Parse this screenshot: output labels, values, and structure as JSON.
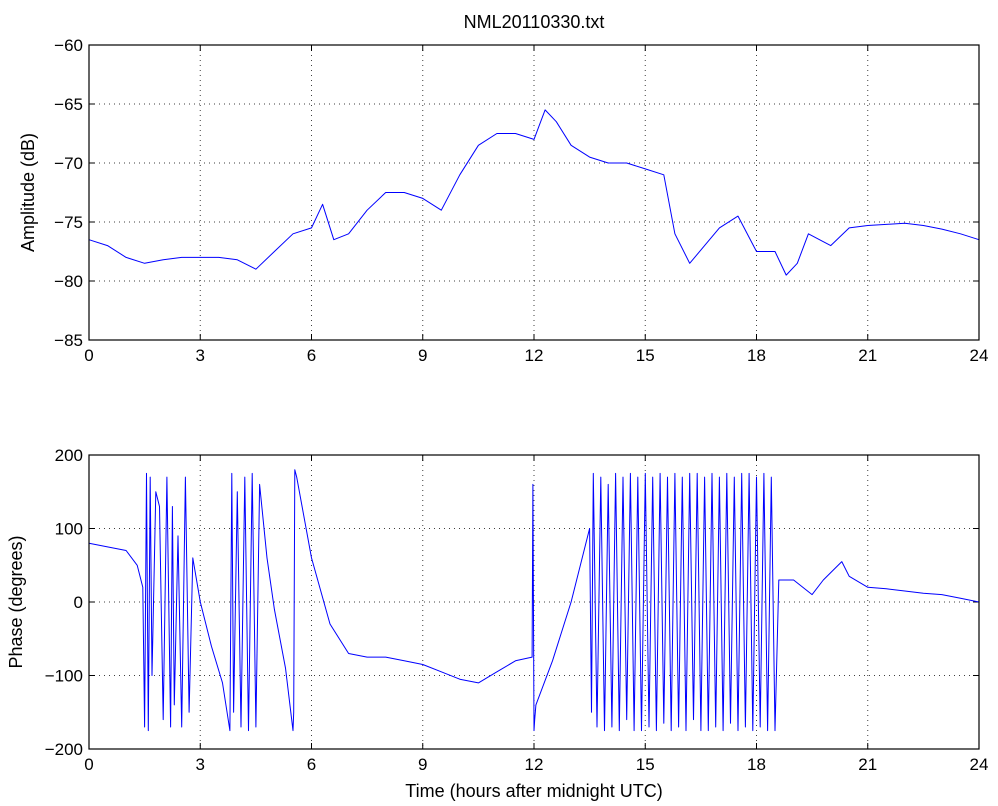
{
  "chart_data": [
    {
      "type": "line",
      "title": "NML20110330.txt",
      "xlabel": "",
      "ylabel": "Amplitude (dB)",
      "xlim": [
        0,
        24
      ],
      "ylim": [
        -85,
        -60
      ],
      "xticks": [
        0,
        3,
        6,
        9,
        12,
        15,
        18,
        21,
        24
      ],
      "yticks": [
        -85,
        -80,
        -75,
        -70,
        -65,
        -60
      ],
      "grid": true,
      "color": "#0000ff",
      "series": [
        {
          "x": [
            0,
            0.5,
            1.0,
            1.5,
            2.0,
            2.5,
            3.0,
            3.5,
            4.0,
            4.5,
            5.0,
            5.5,
            6.0,
            6.3,
            6.6,
            7.0,
            7.5,
            8.0,
            8.5,
            9.0,
            9.5,
            10.0,
            10.5,
            11.0,
            11.5,
            12.0,
            12.3,
            12.6,
            13.0,
            13.5,
            14.0,
            14.5,
            15.0,
            15.5,
            15.8,
            16.2,
            16.6,
            17.0,
            17.5,
            18.0,
            18.5,
            18.8,
            19.1,
            19.4,
            19.7,
            20.0,
            20.5,
            21.0,
            21.5,
            22.0,
            22.5,
            23.0,
            23.5,
            24.0
          ],
          "values": [
            -76.5,
            -77.0,
            -78.0,
            -78.5,
            -78.2,
            -78.0,
            -78.0,
            -78.0,
            -78.2,
            -79.0,
            -77.5,
            -76.0,
            -75.5,
            -73.5,
            -76.5,
            -76.0,
            -74.0,
            -72.5,
            -72.5,
            -73.0,
            -74.0,
            -71.0,
            -68.5,
            -67.5,
            -67.5,
            -68.0,
            -65.5,
            -66.5,
            -68.5,
            -69.5,
            -70.0,
            -70.0,
            -70.5,
            -71.0,
            -76.0,
            -78.5,
            -77.0,
            -75.5,
            -74.5,
            -77.5,
            -77.5,
            -79.5,
            -78.5,
            -76.0,
            -76.5,
            -77.0,
            -75.5,
            -75.3,
            -75.2,
            -75.1,
            -75.3,
            -75.6,
            -76.0,
            -76.5
          ]
        }
      ]
    },
    {
      "type": "line",
      "title": "",
      "xlabel": "Time (hours after midnight UTC)",
      "ylabel": "Phase (degrees)",
      "xlim": [
        0,
        24
      ],
      "ylim": [
        -200,
        200
      ],
      "xticks": [
        0,
        3,
        6,
        9,
        12,
        15,
        18,
        21,
        24
      ],
      "yticks": [
        -200,
        -100,
        0,
        100,
        200
      ],
      "grid": true,
      "color": "#0000ff",
      "series": [
        {
          "x": [
            0,
            0.5,
            1.0,
            1.3,
            1.45,
            1.5,
            1.55,
            1.6,
            1.65,
            1.7,
            1.8,
            1.9,
            2.0,
            2.1,
            2.2,
            2.25,
            2.3,
            2.4,
            2.5,
            2.6,
            2.7,
            2.8,
            3.0,
            3.3,
            3.6,
            3.8,
            3.85,
            3.9,
            4.0,
            4.1,
            4.2,
            4.3,
            4.4,
            4.5,
            4.6,
            4.8,
            5.0,
            5.3,
            5.5,
            5.52,
            5.55,
            5.6,
            6.0,
            6.5,
            7.0,
            7.5,
            8.0,
            8.5,
            9.0,
            9.5,
            10.0,
            10.5,
            11.0,
            11.5,
            11.95,
            11.97,
            12.0,
            12.02,
            12.05,
            12.5,
            13.0,
            13.5,
            13.55,
            13.6,
            13.7,
            13.8,
            13.9,
            14.0,
            14.1,
            14.2,
            14.3,
            14.4,
            14.5,
            14.6,
            14.7,
            14.8,
            14.9,
            15.0,
            15.1,
            15.2,
            15.3,
            15.4,
            15.5,
            15.6,
            15.7,
            15.8,
            15.9,
            16.0,
            16.1,
            16.2,
            16.3,
            16.4,
            16.5,
            16.6,
            16.7,
            16.8,
            16.9,
            17.0,
            17.1,
            17.2,
            17.3,
            17.4,
            17.5,
            17.6,
            17.7,
            17.8,
            17.9,
            18.0,
            18.1,
            18.2,
            18.3,
            18.4,
            18.5,
            18.6,
            19.0,
            19.5,
            19.8,
            20.0,
            20.3,
            20.5,
            21.0,
            21.5,
            22.0,
            22.5,
            23.0,
            23.5,
            24.0
          ],
          "values": [
            80,
            75,
            70,
            50,
            20,
            -170,
            175,
            -175,
            170,
            -100,
            150,
            130,
            -160,
            170,
            -170,
            130,
            -140,
            90,
            -170,
            170,
            -150,
            60,
            0,
            -60,
            -110,
            -175,
            175,
            -150,
            150,
            -170,
            170,
            -175,
            175,
            -170,
            160,
            60,
            -10,
            -90,
            -175,
            -150,
            180,
            170,
            60,
            -30,
            -70,
            -75,
            -75,
            -80,
            -85,
            -95,
            -105,
            -110,
            -95,
            -80,
            -75,
            160,
            -175,
            -160,
            -140,
            -80,
            0,
            100,
            -150,
            175,
            -170,
            170,
            -175,
            160,
            -170,
            175,
            -175,
            170,
            -160,
            175,
            -175,
            170,
            -175,
            175,
            -170,
            170,
            -175,
            175,
            -165,
            170,
            -175,
            175,
            -170,
            170,
            -175,
            175,
            -160,
            175,
            -175,
            170,
            -175,
            175,
            -170,
            170,
            -175,
            175,
            -165,
            170,
            -175,
            175,
            -170,
            175,
            -175,
            170,
            -170,
            175,
            -175,
            170,
            -175,
            30,
            30,
            10,
            30,
            40,
            55,
            35,
            20,
            18,
            15,
            12,
            10,
            5,
            0
          ]
        }
      ]
    }
  ]
}
